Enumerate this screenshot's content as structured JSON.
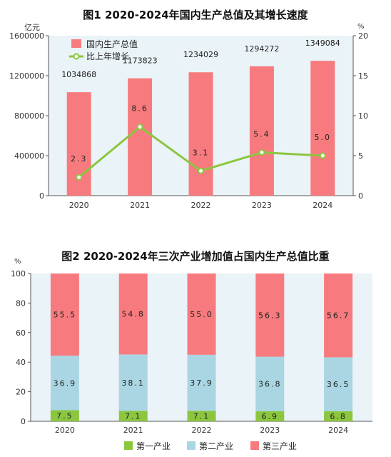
{
  "chart_data": [
    {
      "type": "bar",
      "title": "图1   2020-2024年国内生产总值及其增长速度",
      "categories": [
        "2020",
        "2021",
        "2022",
        "2023",
        "2024"
      ],
      "y_left_unit": "亿元",
      "y_right_unit": "%",
      "y_left_ticks": [
        "0",
        "400000",
        "800000",
        "1200000",
        "1600000"
      ],
      "y_right_ticks": [
        "0",
        "5",
        "10",
        "15",
        "20"
      ],
      "ylim_left": [
        0,
        1600000
      ],
      "ylim_right": [
        0,
        20
      ],
      "series": [
        {
          "name": "国内生产总值",
          "type": "bar",
          "axis": "left",
          "color": "#f77b7e",
          "values": [
            1034868,
            1173823,
            1234029,
            1294272,
            1349084
          ],
          "labels": [
            "1034868",
            "1173823",
            "1234029",
            "1294272",
            "1349084"
          ]
        },
        {
          "name": "比上年增长",
          "type": "line",
          "axis": "right",
          "color": "#8cc63f",
          "values": [
            2.3,
            8.6,
            3.1,
            5.4,
            5.0
          ],
          "labels": [
            "2.3",
            "8.6",
            "3.1",
            "5.4",
            "5.0"
          ]
        }
      ],
      "legend_position": "top-left",
      "grid": false
    },
    {
      "type": "bar",
      "stacked": true,
      "title": "图2   2020-2024年三次产业增加值占国内生产总值比重",
      "categories": [
        "2020",
        "2021",
        "2022",
        "2023",
        "2024"
      ],
      "y_unit": "%",
      "y_ticks": [
        "0",
        "20",
        "40",
        "60",
        "80",
        "100"
      ],
      "ylim": [
        0,
        100
      ],
      "series": [
        {
          "name": "第一产业",
          "color": "#8cc63f",
          "values": [
            7.5,
            7.1,
            7.1,
            6.9,
            6.8
          ],
          "labels": [
            "7.5",
            "7.1",
            "7.1",
            "6.9",
            "6.8"
          ]
        },
        {
          "name": "第二产业",
          "color": "#a9d6e2",
          "values": [
            36.9,
            38.1,
            37.9,
            36.8,
            36.5
          ],
          "labels": [
            "36.9",
            "38.1",
            "37.9",
            "36.8",
            "36.5"
          ]
        },
        {
          "name": "第三产业",
          "color": "#f77b7e",
          "values": [
            55.5,
            54.8,
            55.0,
            56.3,
            56.7
          ],
          "labels": [
            "55.5",
            "54.8",
            "55.0",
            "56.3",
            "56.7"
          ]
        }
      ],
      "legend_position": "bottom",
      "grid": false
    }
  ]
}
